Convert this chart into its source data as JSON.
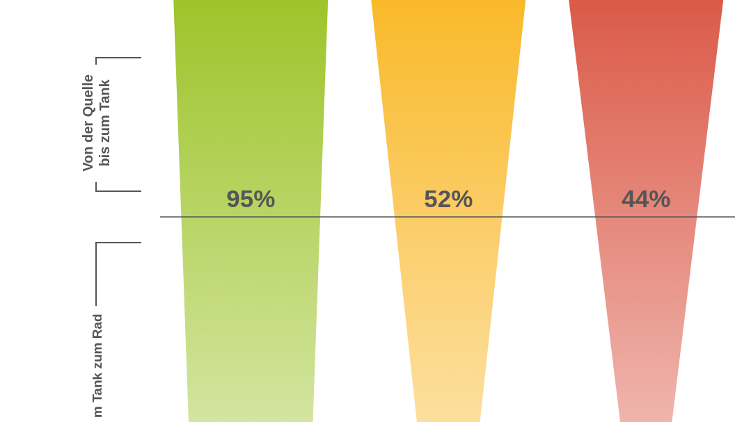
{
  "chart_data": {
    "type": "other",
    "categories": [
      null,
      null,
      null
    ],
    "values": [
      95,
      52,
      44
    ],
    "value_labels": [
      "95%",
      "52%",
      "44%"
    ],
    "colors": [
      "#9dc42a",
      "#f9b92a",
      "#db5a48"
    ],
    "annotations": [
      "Von der Quelle\nbis zum Tank",
      "m Tank zum Rad"
    ]
  }
}
